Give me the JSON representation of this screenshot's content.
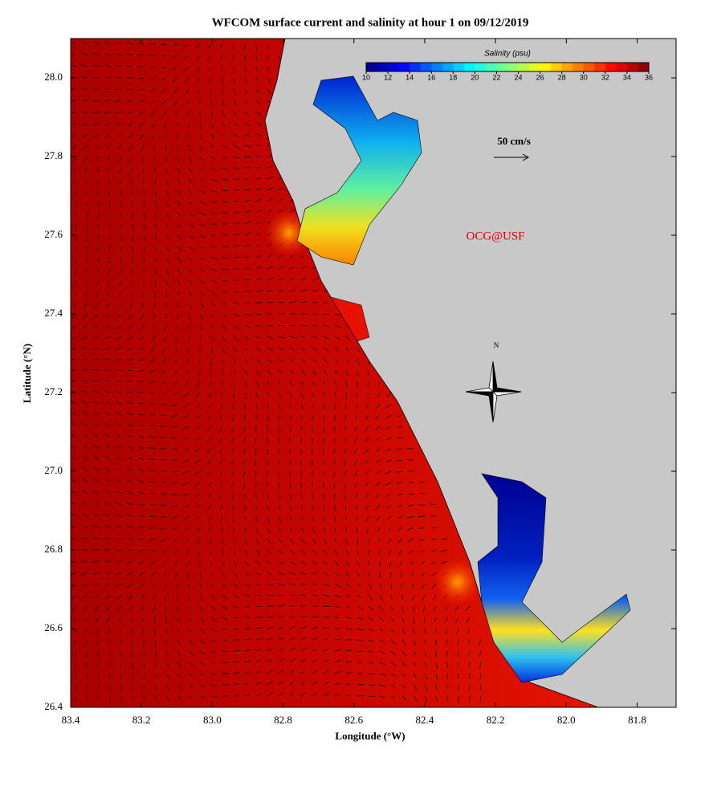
{
  "title": "WFCOM surface current and salinity at hour 1 on 09/12/2019",
  "x_axis": {
    "label": "Longitude (°W)",
    "lim": [
      83.4,
      81.69
    ],
    "ticks": [
      83.4,
      83.2,
      {
        "value": 83,
        "label": "83.0"
      },
      82.8,
      82.6,
      82.4,
      82.2,
      {
        "value": 82,
        "label": "82.0"
      },
      81.8
    ]
  },
  "y_axis": {
    "label": "Latitude (°N)",
    "lim": [
      26.4,
      28.1
    ],
    "ticks": [
      26.4,
      26.6,
      26.8,
      {
        "value": 27,
        "label": "27.0"
      },
      27.2,
      27.4,
      27.6,
      27.8,
      {
        "value": 28,
        "label": "28.0"
      }
    ]
  },
  "colorbar": {
    "label": "Salinity (psu)",
    "lim": [
      10,
      36
    ],
    "ticks": [
      10,
      12,
      14,
      16,
      18,
      20,
      22,
      24,
      26,
      28,
      30,
      32,
      34,
      36
    ]
  },
  "scale_label": "50 cm/s",
  "north_label": "N",
  "credit": "OCG@USF"
}
